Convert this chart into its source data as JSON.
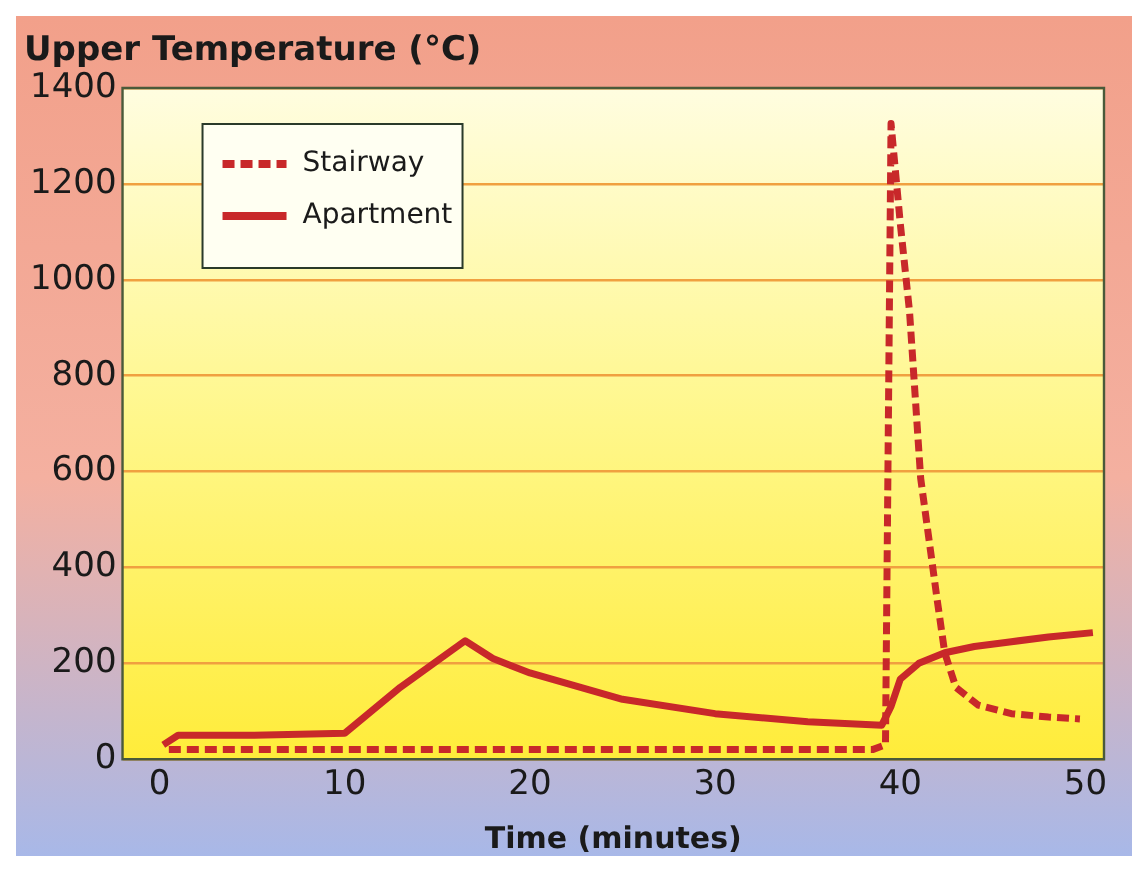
{
  "chart_data": {
    "type": "line",
    "ylabel": "Upper Temperature (°C)",
    "xlabel": "Time (minutes)",
    "xlim": [
      -2,
      51
    ],
    "xticks": [
      0,
      10,
      20,
      30,
      40,
      50
    ],
    "ylim": [
      0,
      1400
    ],
    "yticks": [
      0,
      200,
      400,
      600,
      800,
      1000,
      1200,
      1400
    ],
    "grid": "y",
    "legend": "top left",
    "marker": "none",
    "series": [
      {
        "name": "Stairway",
        "color": "#c8282a",
        "line_style": "dashed",
        "x": [
          0.5,
          1,
          10,
          20,
          30,
          38.5,
          39.2,
          39.5,
          40,
          40.5,
          41.1,
          42,
          42.4,
          43,
          44.2,
          46,
          48,
          49.7
        ],
        "values": [
          20,
          20,
          20,
          20,
          20,
          20,
          30,
          1326,
          1117,
          933,
          586,
          330,
          222,
          150,
          113,
          95,
          88,
          84
        ]
      },
      {
        "name": "Apartment",
        "color": "#c8282a",
        "line_style": "solid",
        "x": [
          0.2,
          1,
          5,
          10,
          13,
          16.5,
          18,
          20,
          25,
          30,
          35,
          39,
          39.5,
          40,
          41,
          42.4,
          44,
          46,
          48,
          50.4
        ],
        "values": [
          30,
          50,
          50,
          54,
          150,
          247,
          210,
          180,
          125,
          95,
          78,
          71,
          110,
          167,
          200,
          222,
          235,
          245,
          255,
          264
        ]
      }
    ]
  }
}
